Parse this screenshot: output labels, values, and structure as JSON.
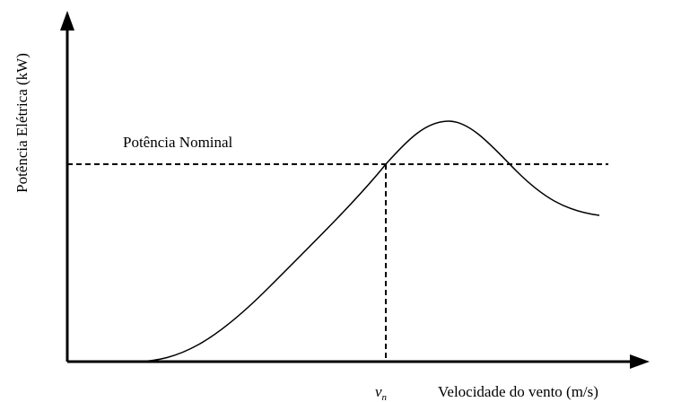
{
  "axes": {
    "y_label": "Potência Elétrica (kW)",
    "x_label": "Velocidade do vento (m/s)"
  },
  "annotations": {
    "nominal_power": "Potência Nominal",
    "rated_speed": "v",
    "rated_speed_subscript": "n"
  }
}
